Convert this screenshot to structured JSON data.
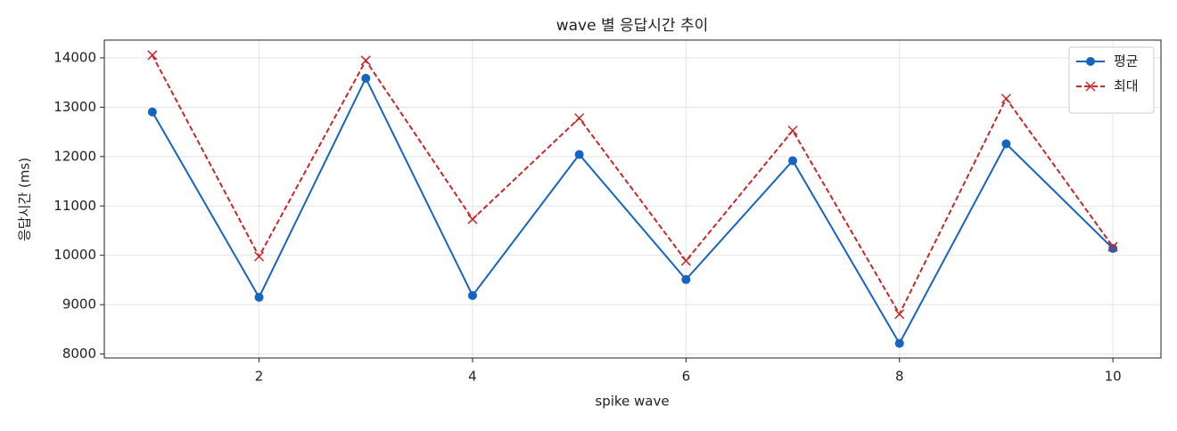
{
  "chart_data": {
    "type": "line",
    "title": "wave 별 응답시간 추이",
    "x_label": "spike wave",
    "y_label": "응답시간 (ms)",
    "x": [
      1,
      2,
      3,
      4,
      5,
      6,
      7,
      8,
      9,
      10
    ],
    "series": [
      {
        "name": "평균",
        "color": "#1565c0",
        "marker": "circle",
        "dash": "solid",
        "values": [
          12904,
          9150,
          13587,
          9186,
          12042,
          9509,
          11916,
          8216,
          12258,
          10138
        ]
      },
      {
        "name": "최대",
        "color": "#c62828",
        "marker": "x",
        "dash": "dashed",
        "values": [
          14054,
          9976,
          13946,
          10731,
          12779,
          9887,
          12527,
          8809,
          13174,
          10174
        ]
      }
    ],
    "xlim": [
      0.55,
      10.45
    ],
    "xticks": [
      2,
      4,
      6,
      8,
      10
    ],
    "ylim": [
      7920,
      14360
    ],
    "yticks": [
      8000,
      9000,
      10000,
      11000,
      12000,
      13000,
      14000
    ],
    "grid": true,
    "legend": "upper right"
  }
}
